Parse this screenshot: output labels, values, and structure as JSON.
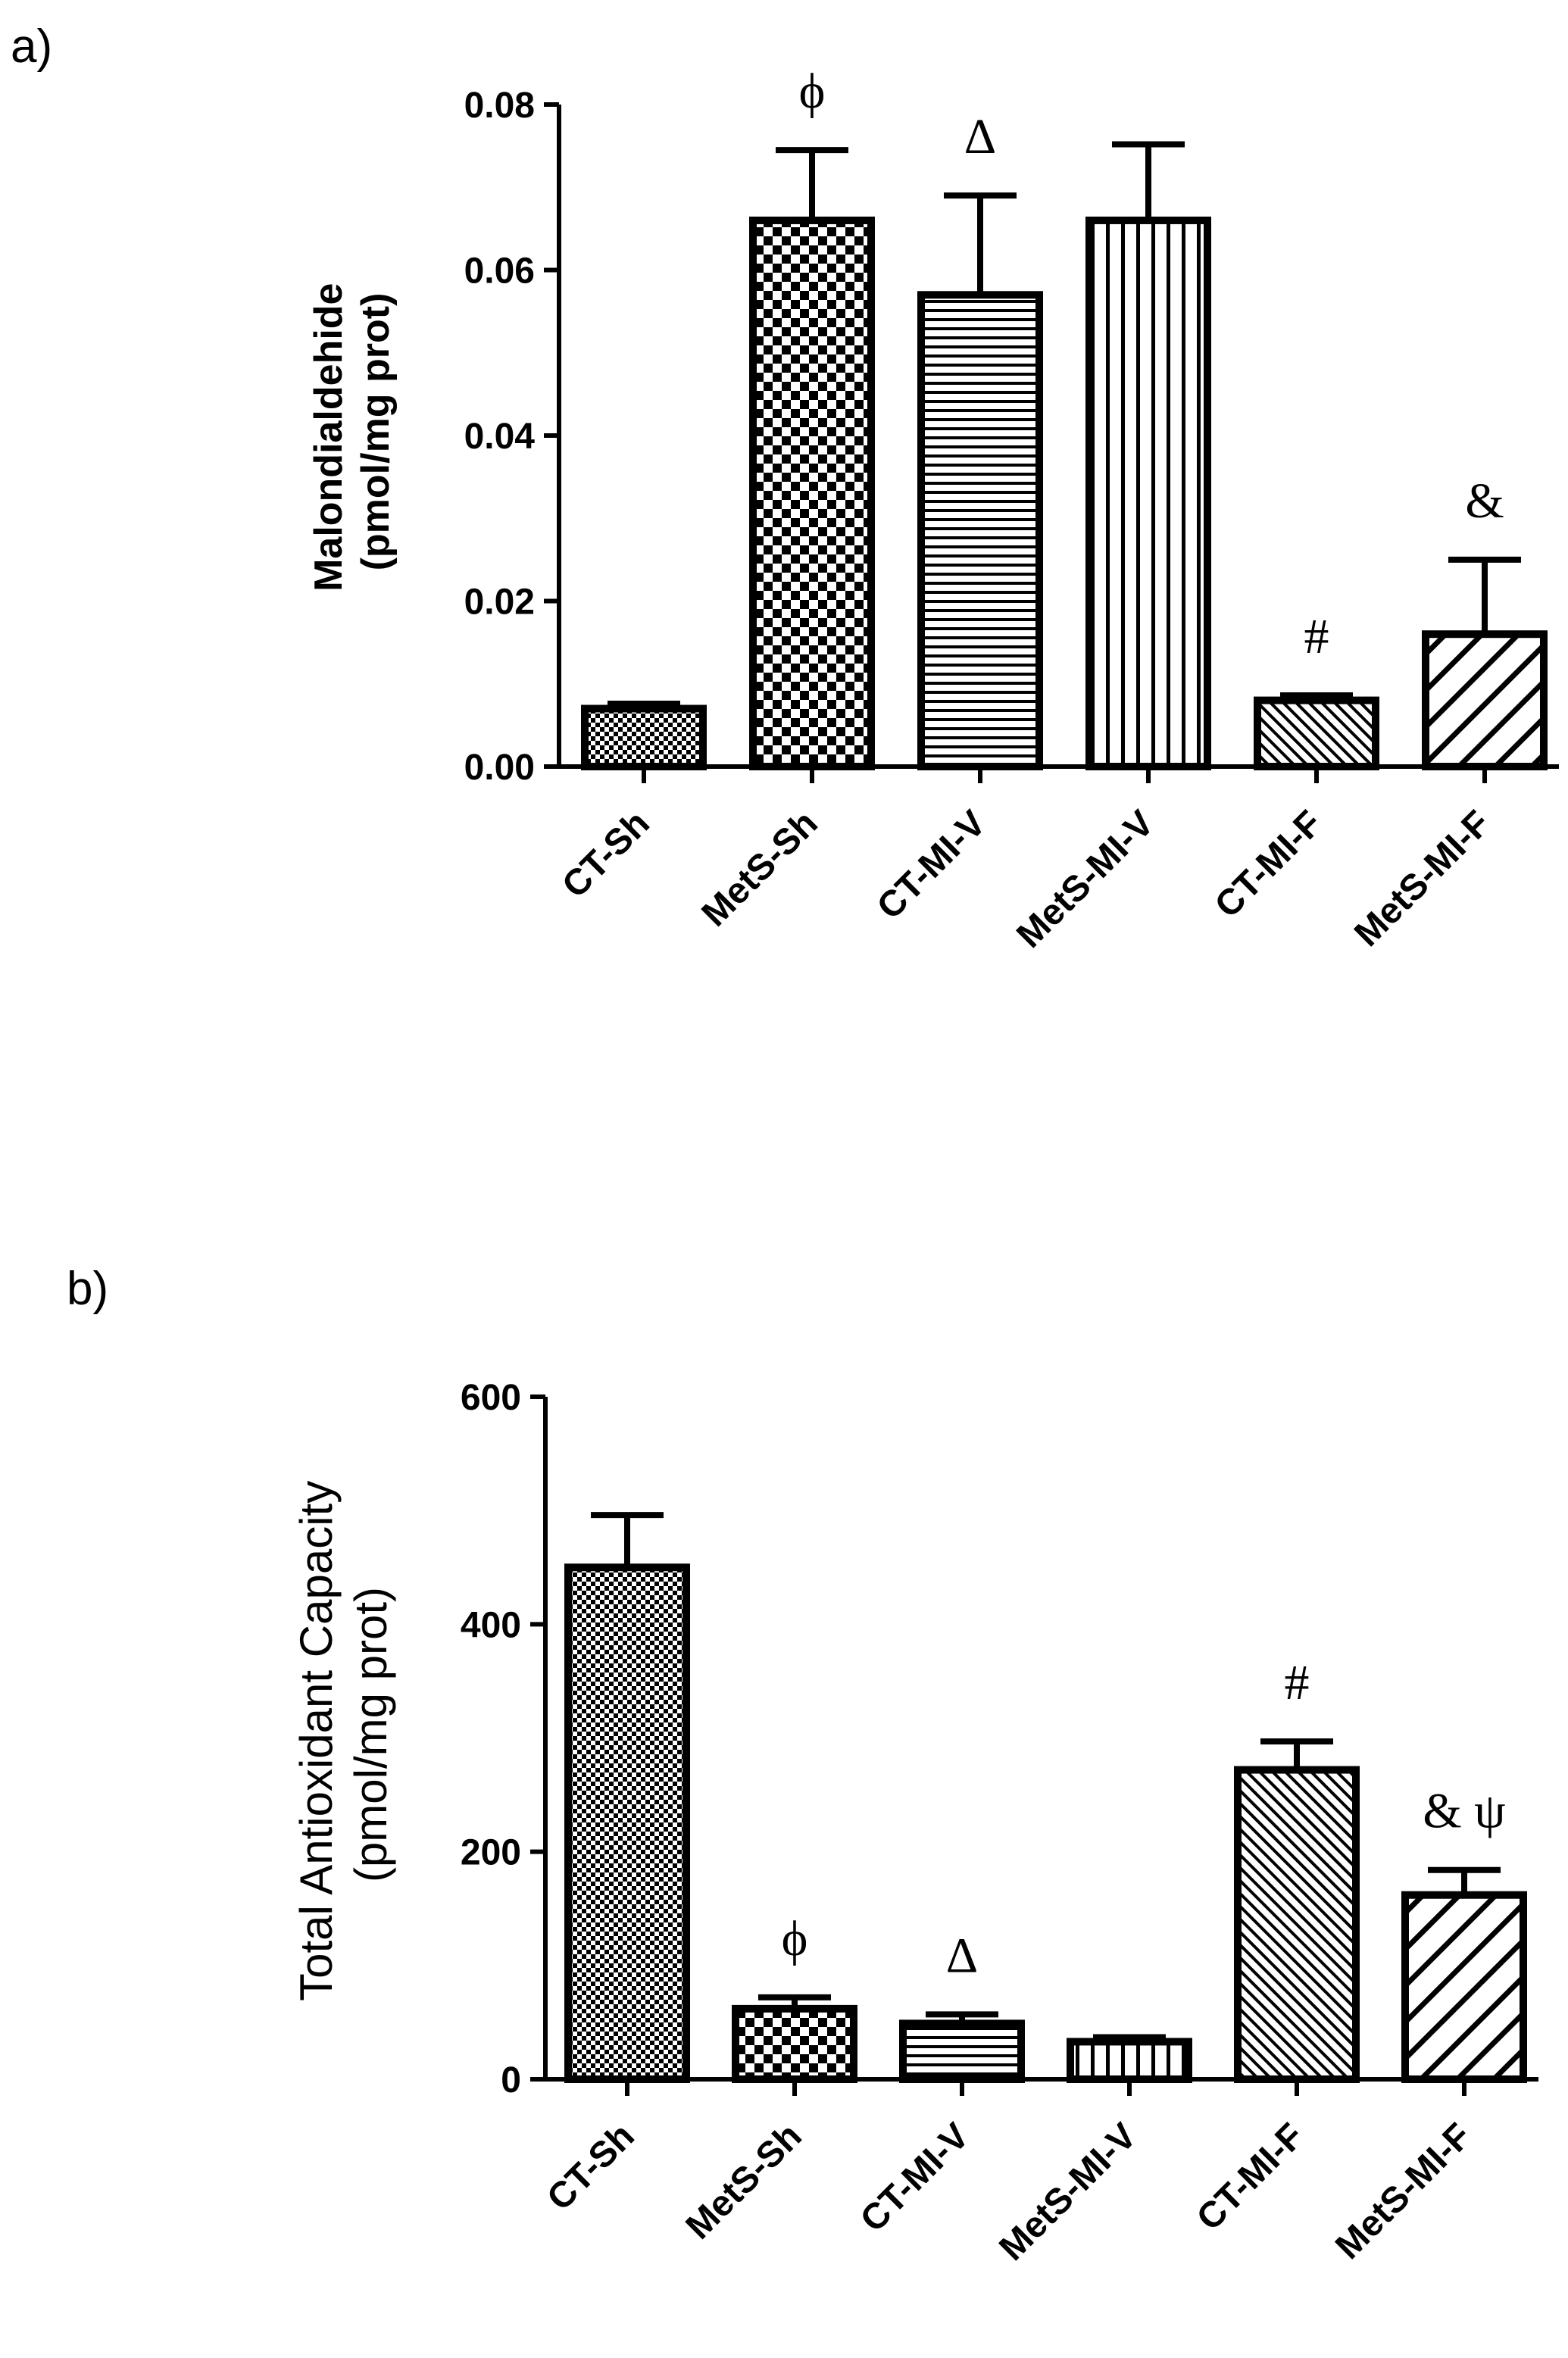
{
  "chart_data": [
    {
      "type": "bar",
      "panel_label": "a)",
      "ylabel": [
        "Malondialdehide",
        "(pmol/mg prot)"
      ],
      "ylim": [
        0,
        0.08
      ],
      "yticks": [
        0,
        0.02,
        0.04,
        0.06,
        0.08
      ],
      "ytick_labels": [
        "0.00",
        "0.02",
        "0.04",
        "0.06",
        "0.08"
      ],
      "categories": [
        "CT-Sh",
        "MetS-Sh",
        "CT-MI-V",
        "MetS-MI-V",
        "CT-MI-F",
        "MetS-MI-F"
      ],
      "values": [
        0.007,
        0.066,
        0.057,
        0.066,
        0.008,
        0.016
      ],
      "errors": [
        0.0006,
        0.0085,
        0.012,
        0.0092,
        0.0006,
        0.009
      ],
      "patterns": [
        "fine-check",
        "check",
        "hlines",
        "vlines",
        "fine-diag",
        "diag"
      ],
      "annotations": [
        "",
        "ϕ",
        "Δ",
        "",
        "#",
        "&"
      ],
      "grid": false
    },
    {
      "type": "bar",
      "panel_label": "b)",
      "ylabel": [
        "Total Antioxidant Capacity",
        "(pmol/mg prot)"
      ],
      "ylim": [
        0,
        600
      ],
      "yticks": [
        0,
        200,
        400,
        600
      ],
      "ytick_labels": [
        "0",
        "200",
        "400",
        "600"
      ],
      "categories": [
        "CT-Sh",
        "MetS-Sh",
        "CT-MI-V",
        "MetS-MI-V",
        "CT-MI-F",
        "MetS-MI-F"
      ],
      "values": [
        450,
        62,
        49,
        33,
        272,
        162
      ],
      "errors": [
        46,
        10,
        8,
        4,
        25,
        22
      ],
      "patterns": [
        "fine-check",
        "check",
        "hlines",
        "vlines",
        "fine-diag",
        "diag"
      ],
      "annotations": [
        "",
        "ϕ",
        "Δ",
        "",
        "#",
        "&  ψ"
      ],
      "grid": false
    }
  ]
}
